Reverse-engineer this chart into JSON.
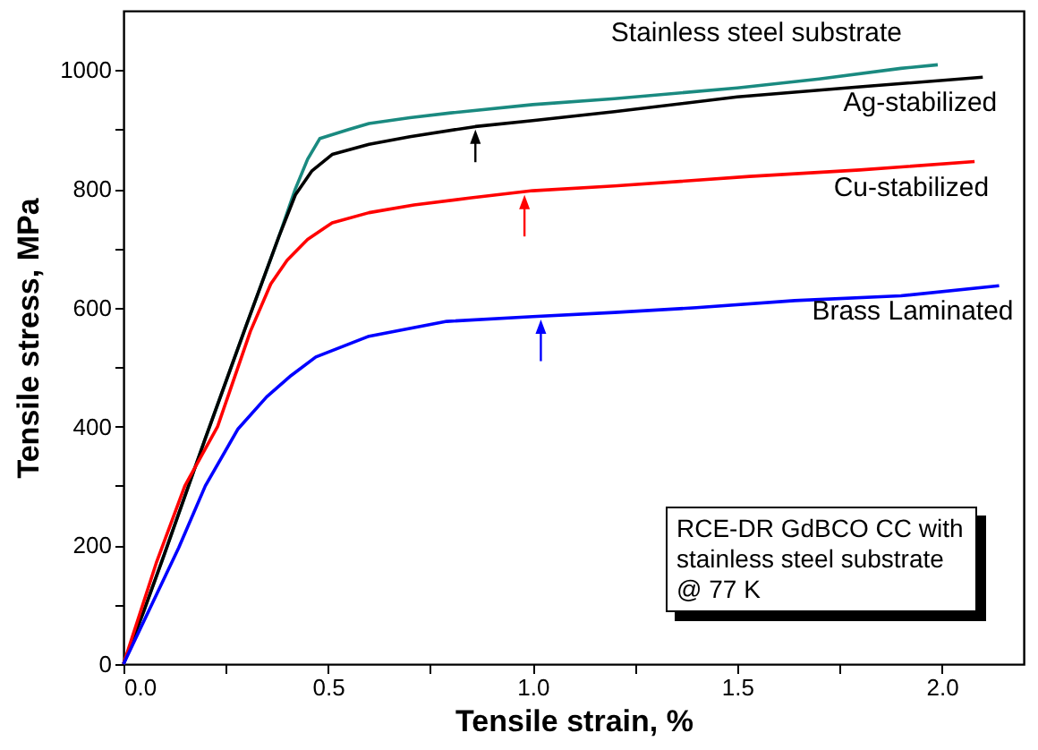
{
  "chart_data": {
    "type": "line",
    "xlabel": "Tensile strain, %",
    "ylabel": "Tensile stress, MPa",
    "xlim": [
      0,
      2.2
    ],
    "ylim": [
      0,
      1100
    ],
    "xticks": [
      {
        "value": 0,
        "label": "0.0"
      },
      {
        "value": 0.25,
        "label": null
      },
      0.5,
      {
        "value": 0.75,
        "label": null
      },
      {
        "value": 1,
        "label": "1.0"
      },
      {
        "value": 1.25,
        "label": null
      },
      1.5,
      {
        "value": 1.75,
        "label": null
      },
      {
        "value": 2,
        "label": "2.0"
      }
    ],
    "yticks": [
      0,
      {
        "value": 100,
        "label": null
      },
      200,
      {
        "value": 300,
        "label": null
      },
      400,
      {
        "value": 500,
        "label": null
      },
      600,
      {
        "value": 700,
        "label": null
      },
      800,
      {
        "value": 900,
        "label": null
      },
      1000
    ],
    "series": [
      {
        "name": "Stainless steel substrate",
        "color": "#1a8a80",
        "x": [
          0,
          0.05,
          0.1,
          0.2,
          0.3,
          0.38,
          0.42,
          0.45,
          0.48,
          0.55,
          0.6,
          0.7,
          0.8,
          1.0,
          1.2,
          1.5,
          1.7,
          1.9,
          1.99
        ],
        "values": [
          0,
          90,
          185,
          380,
          570,
          720,
          800,
          850,
          885,
          900,
          910,
          920,
          928,
          942,
          952,
          970,
          985,
          1003,
          1009
        ]
      },
      {
        "name": "Ag-stabilized",
        "color": "#000000",
        "x": [
          0,
          0.05,
          0.1,
          0.2,
          0.3,
          0.38,
          0.42,
          0.46,
          0.51,
          0.6,
          0.7,
          0.86,
          1.0,
          1.2,
          1.5,
          1.8,
          2.1
        ],
        "values": [
          0,
          90,
          185,
          380,
          570,
          720,
          790,
          830,
          858,
          875,
          888,
          905,
          915,
          930,
          955,
          972,
          988
        ]
      },
      {
        "name": "Cu-stabilized",
        "color": "#ff0000",
        "x": [
          0,
          0.08,
          0.15,
          0.23,
          0.31,
          0.36,
          0.4,
          0.45,
          0.51,
          0.6,
          0.71,
          0.85,
          1.0,
          1.2,
          1.53,
          1.8,
          2.08
        ],
        "values": [
          0,
          170,
          300,
          400,
          560,
          640,
          680,
          715,
          743,
          760,
          773,
          785,
          797,
          805,
          821,
          832,
          846
        ]
      },
      {
        "name": "Brass Laminated",
        "color": "#0000ff",
        "x": [
          0,
          0.135,
          0.2,
          0.28,
          0.35,
          0.41,
          0.47,
          0.6,
          0.79,
          1.0,
          1.2,
          1.4,
          1.64,
          1.9,
          2.14
        ],
        "values": [
          0,
          196,
          300,
          396,
          450,
          486,
          517,
          552,
          577,
          585,
          592,
          600,
          612,
          620,
          637
        ]
      }
    ],
    "annotations": [
      "RCE-DR GdBCO CC with stainless steel substrate @ 77 K"
    ]
  }
}
